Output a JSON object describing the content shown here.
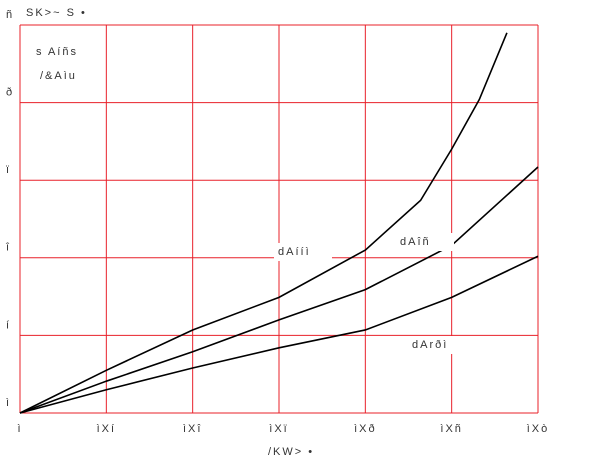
{
  "chart_data": {
    "type": "line",
    "ylabel": "SK>~ S •",
    "xlabel": "/KW> •",
    "annotations": [
      "s Aíñs",
      "/&Aìu"
    ],
    "xlim": [
      0,
      0.6
    ],
    "ylim": [
      0,
      5
    ],
    "xticks": [
      {
        "value": 0,
        "label": "ì"
      },
      {
        "value": 0.1,
        "label": "ìXí"
      },
      {
        "value": 0.2,
        "label": "ìXî"
      },
      {
        "value": 0.3,
        "label": "ìXï"
      },
      {
        "value": 0.4,
        "label": "ìXð"
      },
      {
        "value": 0.5,
        "label": "ìXñ"
      },
      {
        "value": 0.6,
        "label": "ìXò"
      }
    ],
    "yticks": [
      {
        "value": 0,
        "label": "ì"
      },
      {
        "value": 1,
        "label": "í"
      },
      {
        "value": 2,
        "label": "î"
      },
      {
        "value": 3,
        "label": "ï"
      },
      {
        "value": 4,
        "label": "ð"
      },
      {
        "value": 5,
        "label": "ñ"
      }
    ],
    "grid": true,
    "grid_color": "#e8202a",
    "series": [
      {
        "name": "dAííì",
        "color": "#000000",
        "x": [
          0,
          0.1,
          0.2,
          0.3,
          0.4,
          0.464,
          0.5,
          0.532,
          0.564
        ],
        "values": [
          0,
          0.55,
          1.07,
          1.49,
          2.1,
          2.74,
          3.4,
          4.04,
          4.9
        ]
      },
      {
        "name": "dAîñ",
        "color": "#000000",
        "x": [
          0,
          0.1,
          0.2,
          0.3,
          0.4,
          0.5,
          0.6
        ],
        "values": [
          0,
          0.41,
          0.79,
          1.2,
          1.59,
          2.16,
          3.17
        ]
      },
      {
        "name": "dArðì",
        "color": "#000000",
        "x": [
          0,
          0.1,
          0.2,
          0.3,
          0.4,
          0.5,
          0.6
        ],
        "values": [
          0,
          0.3,
          0.58,
          0.84,
          1.07,
          1.49,
          2.02
        ]
      }
    ]
  }
}
